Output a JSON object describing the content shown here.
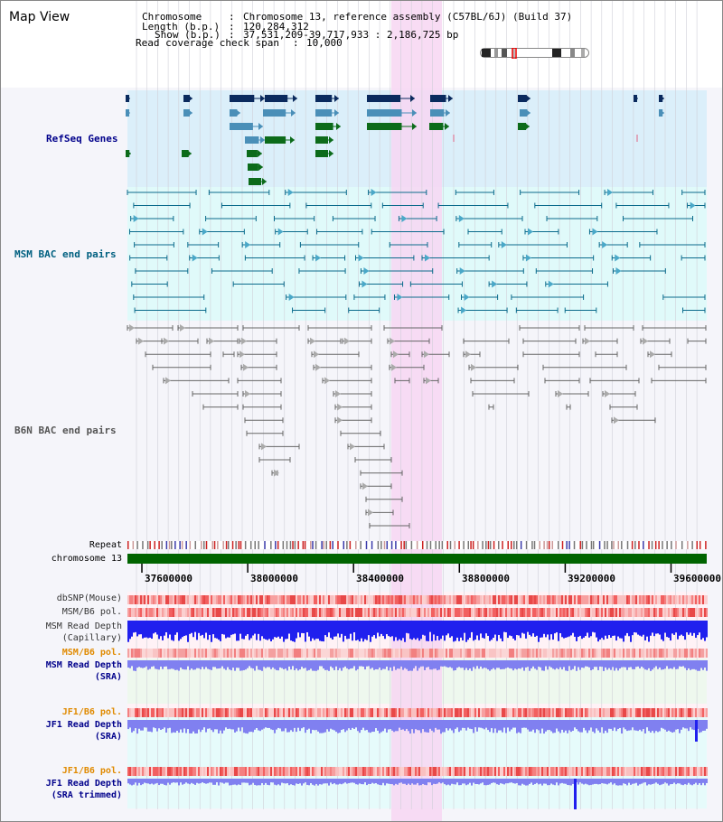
{
  "header": {
    "title": "Map View",
    "info": {
      "chromosome_label": "Chromosome",
      "chromosome_value": "Chromosome 13, reference assembly (C57BL/6J) (Build 37)",
      "length_label": "Length (b.p.)",
      "length_value": "120,284,312",
      "show_label": "Show (b.p.)",
      "show_value": "37,531,209-39,717,933 : 2,186,725 bp",
      "coverage_label": "Read coverage check span",
      "coverage_value": "10,000"
    }
  },
  "tracks": {
    "refseq": "RefSeq Genes",
    "msm_bac": "MSM BAC end pairs",
    "b6n_bac": "B6N BAC end pairs",
    "repeat": "Repeat",
    "chromosome": "chromosome 13",
    "dbsnp": "dbSNP(Mouse)",
    "msm_b6_pol_1": "MSM/B6 pol.",
    "msm_read_depth_cap_1": "MSM Read Depth",
    "msm_read_depth_cap_2": "(Capillary)",
    "msm_b6_pol_2": "MSM/B6 pol.",
    "msm_read_depth_sra_1": "MSM Read Depth",
    "msm_read_depth_sra_2": "(SRA)",
    "jf1_b6_pol_1": "JF1/B6 pol.",
    "jf1_read_depth_sra_1": "JF1 Read Depth",
    "jf1_read_depth_sra_2": "(SRA)",
    "jf1_b6_pol_2": "JF1/B6 pol.",
    "jf1_read_depth_trim_1": "JF1 Read Depth",
    "jf1_read_depth_trim_2": "(SRA trimmed)"
  },
  "axis": {
    "ticks": [
      "37600000",
      "38000000",
      "38400000",
      "38800000",
      "39200000",
      "39600000"
    ]
  },
  "colors": {
    "refseq_bg": "#dbeffa",
    "msm_bg": "#e0fafa",
    "b6n_bg": "#f5f5fa",
    "highlight": "#f7d6f2",
    "refseq_dark": "#0a2a5e",
    "refseq_mid": "#4a8fb8",
    "refseq_green": "#0c6b1a",
    "msm_pair": "#0b6b8c",
    "b6n_pair": "#666666",
    "chrom_bar": "#006400",
    "label_blue": "#00008b",
    "label_teal": "#006080",
    "label_orange": "#e08a00",
    "snp_red": "#f26060",
    "depth_blue": "#2020ee",
    "depth_light": "#8080f0"
  }
}
